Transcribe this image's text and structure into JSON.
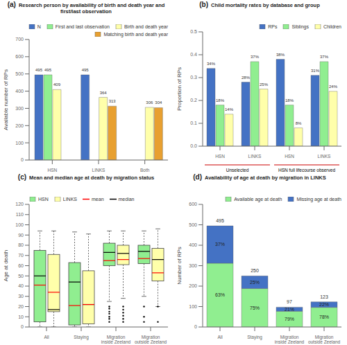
{
  "chart_data": [
    {
      "type": "bar",
      "panel": "(a)",
      "title": "Research person by availability of birth and death year and\nfirst/last observation",
      "ylabel": "Available number of RPs",
      "categories": [
        "HSN",
        "LINKS",
        "Both"
      ],
      "series": [
        {
          "name": "N",
          "color": "#4472c4",
          "values": [
            495,
            495,
            null
          ]
        },
        {
          "name": "First and last observation",
          "color": "#90ee90",
          "values": [
            495,
            null,
            null
          ]
        },
        {
          "name": "Birth and death year",
          "color": "#ffffaa",
          "values": [
            409,
            364,
            306
          ]
        },
        {
          "name": "Matching birth and death year",
          "color": "#e8a030",
          "values": [
            null,
            313,
            304
          ]
        }
      ],
      "ylim": [
        0,
        700
      ],
      "yticks": [
        0,
        100,
        200,
        300,
        400,
        500,
        600,
        700
      ],
      "data_labels": true,
      "legend": "upper right",
      "grid": false
    },
    {
      "type": "bar",
      "panel": "(b)",
      "title": "Child mortality rates by database and group",
      "ylabel": "Proportion of RPs",
      "categories": [
        "HSN",
        "LINKS",
        "HSN",
        "LINKS"
      ],
      "category_groups": {
        "labels": [
          "Unselected",
          "Unselected",
          "HSN full lifecourse observed",
          "HSN full lifecourse observed"
        ],
        "color": "#cc0000"
      },
      "series": [
        {
          "name": "RPs",
          "color": "#4472c4",
          "values": [
            0.34,
            0.28,
            0.38,
            0.31
          ],
          "value_labels": [
            "34%",
            "28%",
            "38%",
            "31%"
          ]
        },
        {
          "name": "Siblings",
          "color": "#90ee90",
          "values": [
            0.18,
            0.37,
            0.18,
            0.37
          ],
          "value_labels": [
            "18%",
            "37%",
            "18%",
            "37%"
          ]
        },
        {
          "name": "Children",
          "color": "#ffffaa",
          "values": [
            0.14,
            0.25,
            0.08,
            0.24
          ],
          "value_labels": [
            "14%",
            "25%",
            "8%",
            "24%"
          ]
        }
      ],
      "ylim": [
        0,
        0.5
      ],
      "yticks": [
        {
          "value": 0,
          "label": "0.0"
        },
        0.1,
        0.2,
        0.3,
        0.4,
        0.5
      ],
      "data_labels": true,
      "legend": "upper right",
      "grid": false
    },
    {
      "type": "box",
      "panel": "(c)",
      "title": "Mean and median age at death by migration status",
      "ylabel": "Age at death",
      "categories": [
        "All",
        "Staying",
        "Migration\ninside Zeeland",
        "Migration\noutside Zeeland"
      ],
      "series": [
        {
          "name": "HSN",
          "color": "#90ee90",
          "boxes": [
            {
              "q1": 5,
              "median": 50,
              "q3": 75,
              "whisker_low": 0,
              "whisker_high": 94,
              "mean": 41
            },
            {
              "q1": 2,
              "median": 44,
              "q3": 63,
              "whisker_low": 0,
              "whisker_high": 93,
              "mean": 21
            },
            {
              "q1": 60,
              "median": 73,
              "q3": 82,
              "whisker_low": 25,
              "whisker_high": 94,
              "mean": 65
            },
            {
              "q1": 62,
              "median": 74,
              "q3": 80,
              "whisker_low": 30,
              "whisker_high": 94,
              "mean": 67
            }
          ],
          "fliers": [
            [],
            [],
            [
              5,
              8,
              10,
              13,
              15,
              18,
              20
            ],
            [
              5,
              10,
              20
            ]
          ]
        },
        {
          "name": "LINKS",
          "color": "#ffffaa",
          "boxes": [
            {
              "q1": 15,
              "median": 17,
              "q3": 71,
              "whisker_low": 0,
              "whisker_high": 94,
              "mean": 34
            },
            {
              "q1": 3,
              "median": 22,
              "q3": 55,
              "whisker_low": 0,
              "whisker_high": 91,
              "mean": 22
            },
            {
              "q1": 61,
              "median": 72,
              "q3": 80,
              "whisker_low": 28,
              "whisker_high": 94,
              "mean": 66
            },
            {
              "q1": 45,
              "median": 66,
              "q3": 77,
              "whisker_low": 20,
              "whisker_high": 96,
              "mean": 53
            }
          ],
          "fliers": [
            [],
            [],
            [
              5,
              8,
              11,
              14,
              17,
              20
            ],
            [
              5,
              20
            ]
          ]
        }
      ],
      "mean": {
        "name": "mean",
        "color": "red"
      },
      "median": {
        "name": "median",
        "color": "black"
      },
      "ylim": [
        0,
        120
      ],
      "yticks": [
        0,
        10,
        20,
        30,
        40,
        50,
        60,
        70,
        80,
        90,
        100,
        110,
        120
      ],
      "legend": "upper left",
      "grid": false
    },
    {
      "type": "bar",
      "stacked": true,
      "panel": "(d)",
      "title": "Availability of age at death by migration in LINKS",
      "ylabel": "Number of RPs",
      "categories": [
        "All",
        "Staying",
        "Migration\ninside Zeeland",
        "Migration\noutside Zeeland"
      ],
      "series": [
        {
          "name": "Available age at death",
          "color": "#90ee90",
          "values": [
            312,
            188,
            77,
            96
          ],
          "share_labels": [
            "63%",
            "75%",
            "79%",
            "78%"
          ]
        },
        {
          "name": "Missing age at death",
          "color": "#4472c4",
          "values": [
            183,
            62,
            20,
            27
          ],
          "share_labels": [
            "37%",
            "25%",
            "21%",
            "22%"
          ]
        }
      ],
      "totals": [
        495,
        250,
        97,
        123
      ],
      "ylim": [
        0,
        600
      ],
      "yticks": [
        0,
        100,
        200,
        300,
        400,
        500,
        600
      ],
      "legend": "upper right",
      "grid": false
    }
  ]
}
